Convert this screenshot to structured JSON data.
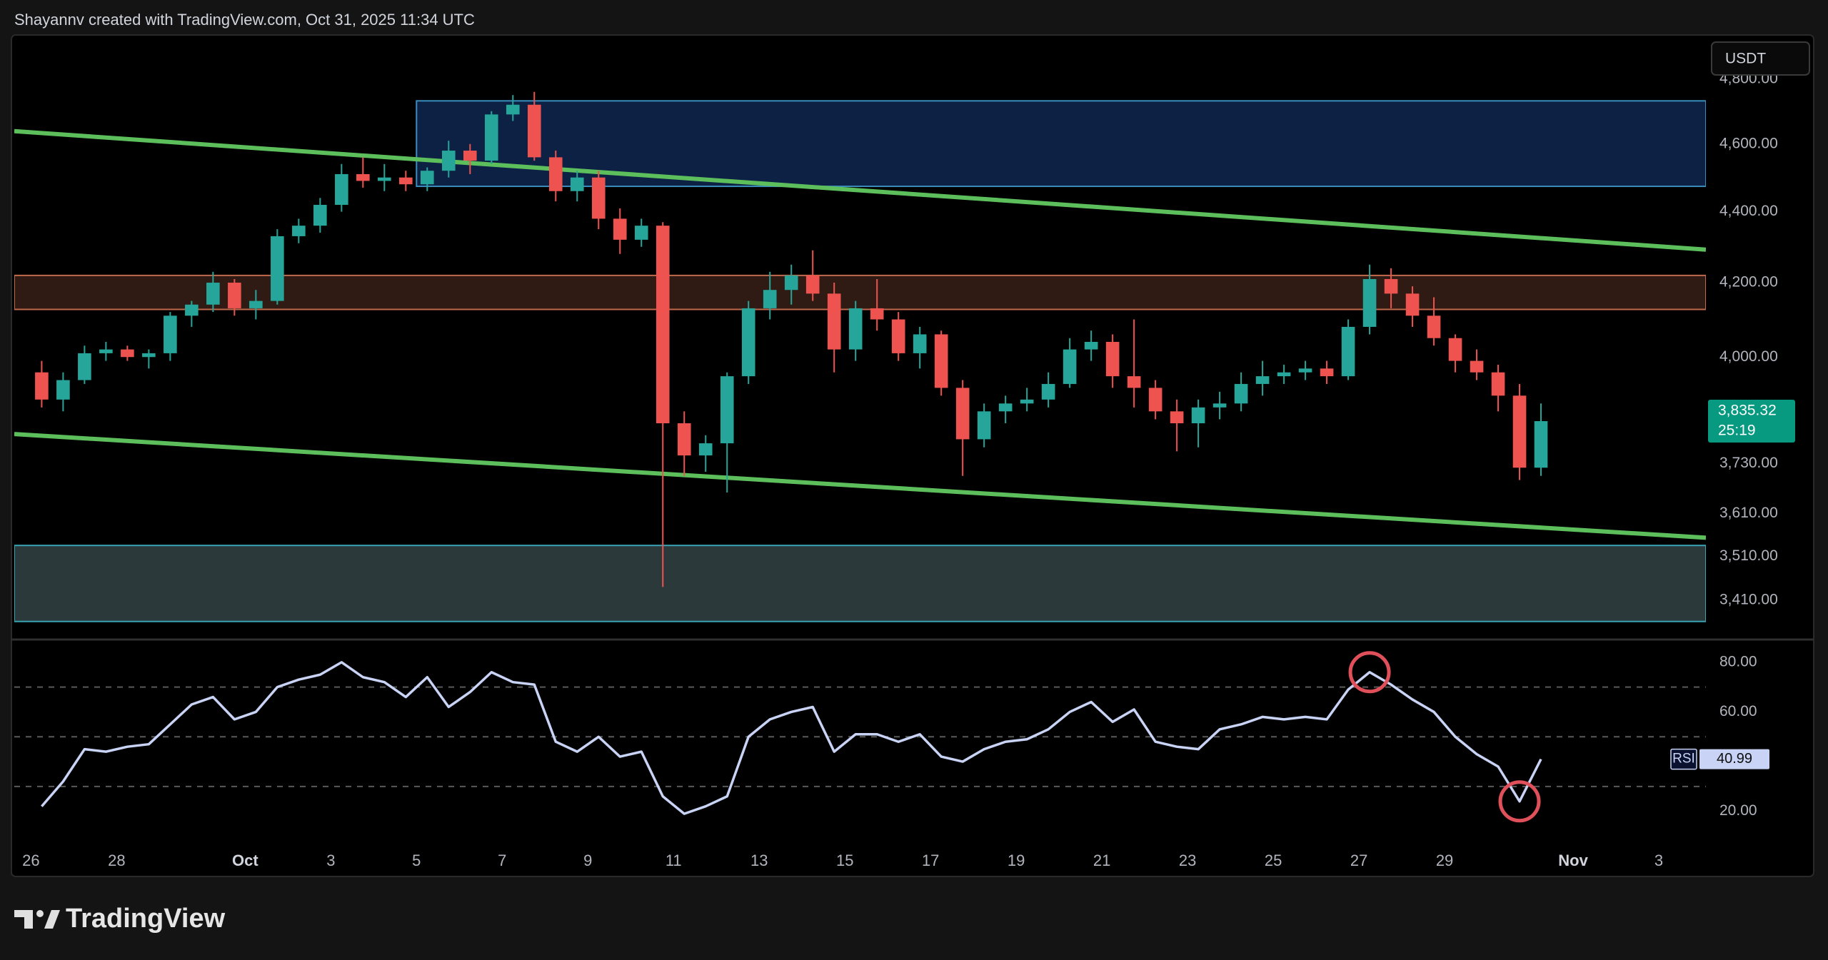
{
  "header": {
    "text": "Shayannv created with TradingView.com, Oct 31, 2025 11:34 UTC"
  },
  "toolbar": {
    "currency": "USDT"
  },
  "footer": {
    "brand": "TradingView"
  },
  "chart_data": [
    {
      "type": "candlestick",
      "log_scale": true,
      "up_color": "#26a69a",
      "down_color": "#ef5350",
      "x": [
        -3.75,
        -3.25,
        -2.75,
        -2.25,
        -1.75,
        -1.25,
        -0.75,
        -0.25,
        0.25,
        0.75,
        1.25,
        1.75,
        2.25,
        2.75,
        3.25,
        3.75,
        4.25,
        4.75,
        5.25,
        5.75,
        6.25,
        6.75,
        7.25,
        7.75,
        8.25,
        8.75,
        9.25,
        9.75,
        10.25,
        10.75,
        11.25,
        11.75,
        12.25,
        12.75,
        13.25,
        13.75,
        14.25,
        14.75,
        15.25,
        15.75,
        16.25,
        16.75,
        17.25,
        17.75,
        18.25,
        18.75,
        19.25,
        19.75,
        20.25,
        20.75,
        21.25,
        21.75,
        22.25,
        22.75,
        23.25,
        23.75,
        24.25,
        24.75,
        25.25,
        25.75,
        26.25,
        26.75,
        27.25,
        27.75,
        28.25,
        28.75,
        29.25,
        29.75,
        30.25,
        30.75,
        31.25
      ],
      "open": [
        3960,
        3890,
        3940,
        4010,
        4020,
        4000,
        4010,
        4110,
        4140,
        4200,
        4130,
        4150,
        4330,
        4360,
        4420,
        4510,
        4490,
        4500,
        4480,
        4520,
        4580,
        4550,
        4690,
        4720,
        4560,
        4460,
        4500,
        4380,
        4320,
        4360,
        3830,
        3750,
        3780,
        3950,
        4130,
        4180,
        4220,
        4170,
        4020,
        4130,
        4100,
        4010,
        4060,
        3920,
        3790,
        3860,
        3880,
        3890,
        3930,
        4020,
        4040,
        3950,
        3920,
        3860,
        3830,
        3870,
        3880,
        3930,
        3950,
        3960,
        3970,
        3950,
        4080,
        4210,
        4170,
        4110,
        4050,
        3990,
        3960,
        3900,
        3720
      ],
      "high": [
        3990,
        3960,
        4030,
        4040,
        4030,
        4020,
        4120,
        4150,
        4230,
        4210,
        4180,
        4350,
        4380,
        4440,
        4540,
        4560,
        4540,
        4520,
        4530,
        4610,
        4600,
        4700,
        4750,
        4760,
        4580,
        4520,
        4520,
        4410,
        4380,
        4370,
        3860,
        3800,
        3960,
        4150,
        4230,
        4250,
        4290,
        4200,
        4150,
        4210,
        4120,
        4080,
        4070,
        3940,
        3880,
        3900,
        3920,
        3960,
        4050,
        4070,
        4060,
        4100,
        3940,
        3890,
        3890,
        3910,
        3960,
        3990,
        3980,
        3990,
        3990,
        4100,
        4250,
        4240,
        4190,
        4160,
        4060,
        4020,
        3980,
        3930,
        3880
      ],
      "low": [
        3870,
        3860,
        3930,
        3990,
        3990,
        3970,
        3990,
        4080,
        4120,
        4110,
        4100,
        4140,
        4310,
        4340,
        4400,
        4470,
        4460,
        4460,
        4460,
        4500,
        4510,
        4540,
        4670,
        4550,
        4430,
        4430,
        4350,
        4280,
        4300,
        3440,
        3700,
        3710,
        3660,
        3930,
        4100,
        4140,
        4150,
        3960,
        3990,
        4070,
        3990,
        3970,
        3900,
        3700,
        3770,
        3830,
        3860,
        3870,
        3920,
        3990,
        3920,
        3870,
        3840,
        3760,
        3770,
        3840,
        3860,
        3900,
        3930,
        3940,
        3930,
        3940,
        4060,
        4130,
        4080,
        4030,
        3960,
        3940,
        3860,
        3690,
        3700
      ],
      "close": [
        3890,
        3940,
        4010,
        4020,
        4000,
        4010,
        4110,
        4140,
        4200,
        4130,
        4150,
        4330,
        4360,
        4420,
        4510,
        4490,
        4500,
        4480,
        4520,
        4580,
        4550,
        4690,
        4720,
        4560,
        4460,
        4500,
        4380,
        4320,
        4360,
        3830,
        3750,
        3780,
        3950,
        4130,
        4180,
        4220,
        4170,
        4020,
        4130,
        4100,
        4010,
        4060,
        3920,
        3790,
        3860,
        3880,
        3890,
        3930,
        4020,
        4040,
        3950,
        3920,
        3860,
        3830,
        3870,
        3880,
        3930,
        3950,
        3960,
        3970,
        3950,
        4080,
        4210,
        4170,
        4110,
        4050,
        3990,
        3960,
        3900,
        3720,
        3835.32
      ],
      "last_label": "3,835.32",
      "countdown": "25:19",
      "ylim": [
        3325,
        4941
      ],
      "yticks": [
        {
          "value": 3410,
          "label": "3,410.00"
        },
        {
          "value": 3510,
          "label": "3,510.00"
        },
        {
          "value": 3610,
          "label": "3,610.00"
        },
        {
          "value": 3730,
          "label": "3,730.00"
        },
        {
          "value": 4000,
          "label": "4,000.00"
        },
        {
          "value": 4200,
          "label": "4,200.00"
        },
        {
          "value": 4400,
          "label": "4,400.00"
        },
        {
          "value": 4600,
          "label": "4,600.00"
        },
        {
          "value": 4800,
          "label": "4,800.00"
        }
      ],
      "xlim": [
        -4.39,
        35.1
      ],
      "xticks": [
        {
          "value": -4,
          "label": "26"
        },
        {
          "value": -2,
          "label": "28"
        },
        {
          "value": 1,
          "label": "Oct"
        },
        3,
        5,
        7,
        9,
        11,
        13,
        15,
        17,
        19,
        21,
        23,
        25,
        27,
        29,
        {
          "value": 32,
          "label": "Nov"
        },
        {
          "value": 34,
          "label": "3"
        }
      ],
      "zones": [
        {
          "x0": 5,
          "top": 4732,
          "bottom": 4474,
          "fill": "#0c2143",
          "stroke": "#3b8dbd"
        },
        {
          "top": 4220,
          "bottom": 4127,
          "fill": "#2f1b13",
          "stroke": "#c0694c"
        },
        {
          "top": 3535,
          "bottom": 3363,
          "fill": "#2c393b",
          "stroke": "#3aa3b5"
        }
      ],
      "trendlines": [
        {
          "from": [
            -4.39,
            4639
          ],
          "to": [
            35.1,
            4292
          ]
        },
        {
          "from": [
            -4.39,
            3803
          ],
          "to": [
            35.1,
            3553
          ]
        }
      ],
      "trend_color": "#5cbf5c"
    },
    {
      "type": "line",
      "name": "RSI",
      "color": "#c8d3f5",
      "values": [
        22,
        32,
        45,
        44,
        46,
        47,
        55,
        63,
        66,
        57,
        60,
        70,
        73,
        75,
        80,
        74,
        72,
        66,
        74,
        62,
        68,
        76,
        72,
        71,
        48,
        44,
        50,
        42,
        44,
        26,
        19,
        22,
        26,
        50,
        57,
        60,
        62,
        44,
        51,
        51,
        48,
        51,
        42,
        40,
        45,
        48,
        49,
        53,
        60,
        64,
        56,
        61,
        48,
        46,
        45,
        53,
        55,
        58,
        57,
        58,
        57,
        69,
        76,
        71,
        65,
        60,
        50,
        43,
        38,
        24,
        40.99
      ],
      "ylim": [
        6.4,
        88
      ],
      "yticks": [
        {
          "value": 20,
          "label": "20.00"
        },
        {
          "value": 60,
          "label": "60.00"
        },
        {
          "value": 80,
          "label": "80.00"
        }
      ],
      "levels": [
        70,
        50,
        30
      ],
      "highlights": [
        62,
        69
      ],
      "highlight_color": "#e0505a"
    }
  ]
}
